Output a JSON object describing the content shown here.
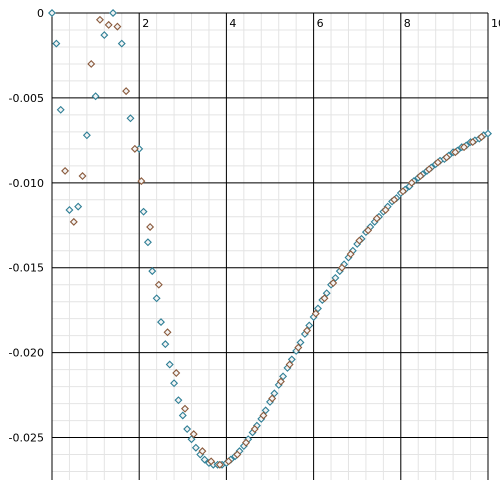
{
  "colors": {
    "background": "#ffffff",
    "grid_major": "#000000",
    "grid_minor": "#e4e4e4",
    "marker_teal": "#2f7f96",
    "marker_brown": "#8a5a3c"
  },
  "chart_data": {
    "type": "scatter",
    "title": "",
    "xlabel": "",
    "ylabel": "",
    "xlim": [
      0,
      10
    ],
    "ylim": [
      -0.0275,
      0
    ],
    "grid": true,
    "legend": "none",
    "marker": "diamond",
    "x_ticks": [
      {
        "value": 2,
        "label": "2"
      },
      {
        "value": 4,
        "label": "4"
      },
      {
        "value": 6,
        "label": "6"
      },
      {
        "value": 8,
        "label": "8"
      },
      {
        "value": 10,
        "label": "10"
      }
    ],
    "y_ticks": [
      {
        "value": 0,
        "label": "0"
      },
      {
        "value": -0.005,
        "label": "-0.005"
      },
      {
        "value": -0.01,
        "label": "-0.010"
      },
      {
        "value": -0.015,
        "label": "-0.015"
      },
      {
        "value": -0.02,
        "label": "-0.020"
      },
      {
        "value": -0.025,
        "label": "-0.025"
      }
    ],
    "series": [
      {
        "color": "#2f7f96",
        "x": [
          0.0,
          0.1,
          0.2,
          0.4,
          0.6,
          0.8,
          1.0,
          1.2,
          1.4,
          1.6,
          1.8,
          2.0,
          2.1,
          2.2,
          2.3,
          2.4,
          2.5,
          2.6,
          2.7,
          2.8,
          2.9,
          3.0,
          3.1,
          3.2,
          3.3,
          3.4,
          3.5,
          3.6,
          3.7,
          3.8,
          3.9,
          4.0,
          4.1,
          4.2,
          4.3,
          4.4,
          4.5,
          4.6,
          4.7,
          4.8,
          4.9,
          5.0,
          5.1,
          5.2,
          5.3,
          5.4,
          5.5,
          5.6,
          5.7,
          5.8,
          5.9,
          6.0,
          6.1,
          6.2,
          6.3,
          6.4,
          6.5,
          6.6,
          6.7,
          6.8,
          6.9,
          7.0,
          7.1,
          7.2,
          7.3,
          7.4,
          7.5,
          7.6,
          7.7,
          7.8,
          7.9,
          8.0,
          8.1,
          8.2,
          8.3,
          8.4,
          8.5,
          8.6,
          8.7,
          8.8,
          8.9,
          9.0,
          9.1,
          9.2,
          9.3,
          9.4,
          9.5,
          9.6,
          9.7,
          9.8,
          9.9,
          10.0
        ],
        "y": [
          0.0,
          -0.0018,
          -0.0057,
          -0.0116,
          -0.0114,
          -0.0072,
          -0.0049,
          -0.0013,
          0.0,
          -0.0018,
          -0.0062,
          -0.008,
          -0.0117,
          -0.0135,
          -0.0152,
          -0.0168,
          -0.0182,
          -0.0195,
          -0.0207,
          -0.0218,
          -0.0228,
          -0.0237,
          -0.0245,
          -0.0251,
          -0.0256,
          -0.026,
          -0.0263,
          -0.0265,
          -0.0266,
          -0.0266,
          -0.0266,
          -0.0265,
          -0.0263,
          -0.0261,
          -0.0258,
          -0.0255,
          -0.0251,
          -0.0247,
          -0.0243,
          -0.0239,
          -0.0234,
          -0.0229,
          -0.0224,
          -0.0219,
          -0.0214,
          -0.0209,
          -0.0204,
          -0.0199,
          -0.0194,
          -0.0189,
          -0.0184,
          -0.0179,
          -0.0174,
          -0.0169,
          -0.0165,
          -0.016,
          -0.0156,
          -0.0152,
          -0.0148,
          -0.0144,
          -0.014,
          -0.0136,
          -0.0133,
          -0.0129,
          -0.0126,
          -0.0123,
          -0.012,
          -0.0117,
          -0.0114,
          -0.0111,
          -0.0109,
          -0.0106,
          -0.0104,
          -0.0102,
          -0.0099,
          -0.0097,
          -0.0095,
          -0.0093,
          -0.0091,
          -0.0089,
          -0.0087,
          -0.0086,
          -0.0084,
          -0.0082,
          -0.0081,
          -0.0079,
          -0.0078,
          -0.0076,
          -0.0075,
          -0.0074,
          -0.0072,
          -0.0071
        ]
      },
      {
        "color": "#8a5a3c",
        "x": [
          0.3,
          0.5,
          0.7,
          0.9,
          1.1,
          1.3,
          1.5,
          1.7,
          1.9,
          2.05,
          2.25,
          2.45,
          2.65,
          2.85,
          3.05,
          3.25,
          3.45,
          3.65,
          3.85,
          4.05,
          4.25,
          4.45,
          4.65,
          4.85,
          5.05,
          5.25,
          5.45,
          5.65,
          5.85,
          6.05,
          6.25,
          6.45,
          6.65,
          6.85,
          7.05,
          7.25,
          7.45,
          7.65,
          7.85,
          8.05,
          8.25,
          8.45,
          8.65,
          8.85,
          9.05,
          9.25,
          9.45,
          9.65,
          9.85
        ],
        "y": [
          -0.0093,
          -0.0123,
          -0.0096,
          -0.003,
          -0.0004,
          -0.0007,
          -0.0008,
          -0.0046,
          -0.008,
          -0.0099,
          -0.0126,
          -0.016,
          -0.0188,
          -0.0212,
          -0.0233,
          -0.0248,
          -0.0258,
          -0.0264,
          -0.0266,
          -0.0264,
          -0.026,
          -0.0253,
          -0.0245,
          -0.0237,
          -0.0227,
          -0.0217,
          -0.0207,
          -0.0197,
          -0.0187,
          -0.0177,
          -0.0168,
          -0.0159,
          -0.015,
          -0.0142,
          -0.0134,
          -0.0128,
          -0.0121,
          -0.0116,
          -0.011,
          -0.0105,
          -0.01,
          -0.0096,
          -0.0092,
          -0.0088,
          -0.0085,
          -0.0082,
          -0.0079,
          -0.0076,
          -0.0073
        ]
      }
    ]
  }
}
